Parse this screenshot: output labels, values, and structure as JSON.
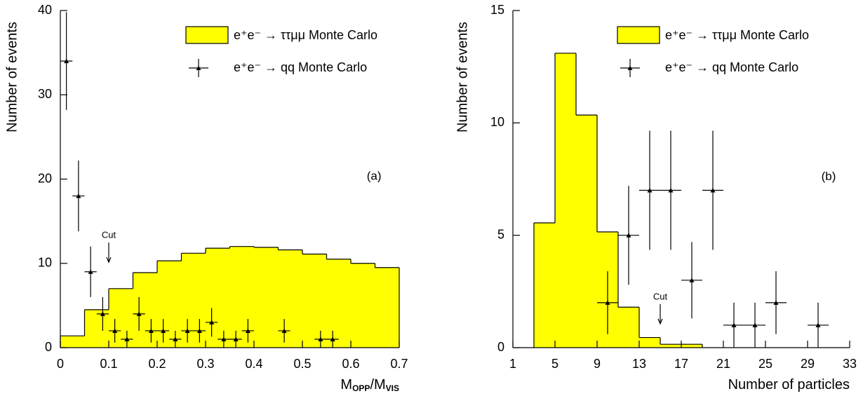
{
  "chart_data": [
    {
      "type": "histogram",
      "x_label": [
        "M",
        "OPP",
        "/M",
        "VIS"
      ],
      "y_label": "Number of events",
      "xlim": [
        0,
        0.7
      ],
      "ylim": [
        0,
        40
      ],
      "xticks": [
        0,
        0.1,
        0.2,
        0.3,
        0.4,
        0.5,
        0.6,
        0.7
      ],
      "yticks": [
        0,
        10,
        20,
        30,
        40
      ],
      "bins": [
        0,
        0.05,
        0.1,
        0.15,
        0.2,
        0.25,
        0.3,
        0.35,
        0.4,
        0.45,
        0.5,
        0.55,
        0.6,
        0.65,
        0.7
      ],
      "values": [
        1.4,
        4.5,
        7.0,
        8.9,
        10.3,
        11.2,
        11.8,
        12.0,
        11.9,
        11.6,
        11.1,
        10.5,
        10.0,
        9.5
      ],
      "color": "#ffff00",
      "name": "e⁺e⁻ → ττμμ Monte Carlo",
      "points": {
        "name": "e⁺e⁻ → qq Monte Carlo",
        "x": [
          0.0125,
          0.0375,
          0.0625,
          0.0875,
          0.1125,
          0.1375,
          0.1625,
          0.1875,
          0.2125,
          0.2375,
          0.2625,
          0.2875,
          0.3125,
          0.3375,
          0.3625,
          0.3875,
          0.4625,
          0.5375,
          0.5625
        ],
        "values": [
          34,
          18,
          9,
          4,
          2,
          1,
          4,
          2,
          2,
          1,
          2,
          2,
          3,
          1,
          1,
          2,
          2,
          1,
          1
        ],
        "errors": [
          5.8,
          4.2,
          3,
          2,
          1.4,
          1,
          2,
          1.4,
          1.4,
          1,
          1.4,
          1.4,
          1.7,
          1,
          1,
          1.4,
          1.4,
          1,
          1
        ],
        "xerr": 0.0125
      },
      "annotations": [
        {
          "text": "Cut",
          "x": 0.1,
          "y": 13.3
        },
        {
          "text": "(a)",
          "x": 0.648,
          "y": 20.3
        }
      ]
    },
    {
      "type": "histogram",
      "x_label": [
        "Number of particles"
      ],
      "y_label": "Number of events",
      "xlim": [
        1,
        33
      ],
      "ylim": [
        0,
        15
      ],
      "xticks": [
        1,
        5,
        9,
        13,
        17,
        21,
        25,
        29,
        33
      ],
      "yticks": [
        0,
        5,
        10,
        15
      ],
      "bins": [
        3,
        5,
        7,
        9,
        11,
        13,
        15,
        17,
        19
      ],
      "values": [
        5.55,
        13.1,
        10.35,
        5.15,
        1.8,
        0.45,
        0.15,
        0.15
      ],
      "color": "#ffff00",
      "name": "e⁺e⁻ → ττμμ Monte Carlo",
      "points": {
        "name": "e⁺e⁻ → qq Monte Carlo",
        "x": [
          10,
          12,
          14,
          16,
          18,
          20,
          22,
          24,
          26,
          30
        ],
        "values": [
          2,
          5,
          7,
          7,
          3,
          7,
          1,
          1,
          2,
          1
        ],
        "errors": [
          1.4,
          2.2,
          2.65,
          2.65,
          1.7,
          2.65,
          1,
          1,
          1.4,
          1
        ],
        "xerr": 1
      },
      "annotations": [
        {
          "text": "Cut",
          "x": 15,
          "y": 2.25
        },
        {
          "text": "(b)",
          "x": 31,
          "y": 7.6
        }
      ]
    }
  ]
}
